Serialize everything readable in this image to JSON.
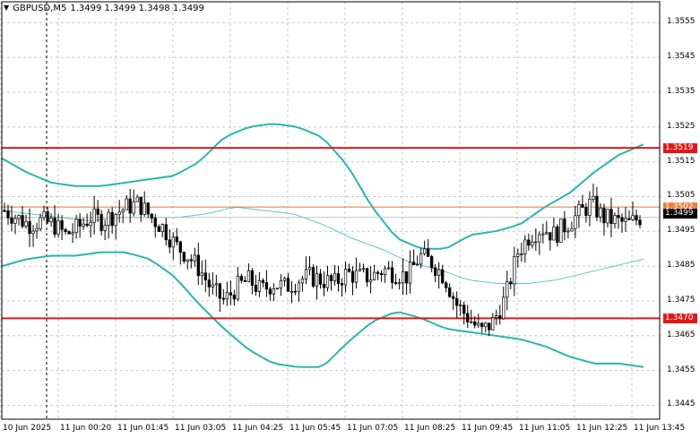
{
  "header": {
    "symbol": "GBPUSD,M5",
    "ohlc": "1.3499 1.3499 1.3498 1.3499"
  },
  "colors": {
    "grid": "#c8c8c8",
    "candle": "#000000",
    "band": "#2ab5b0",
    "ma": "#5ec7c3",
    "level_line": "#e01818",
    "ask_line": "#e07a3a",
    "bid_line": "#c0c0c0",
    "bid_tag_bg": "#000000",
    "level_tag_bg": "#e01818",
    "ask_tag_bg": "#e8823e"
  },
  "chart_data": {
    "type": "candlestick",
    "y_range": [
      1.3441,
      1.3561
    ],
    "price_ticks": [
      "1.3555",
      "1.3545",
      "1.3535",
      "1.3525",
      "1.3515",
      "1.3505",
      "1.3495",
      "1.3485",
      "1.3475",
      "1.3465",
      "1.3455",
      "1.3445"
    ],
    "time_labels": [
      "10 Jun 2025",
      "11 Jun 00:20",
      "11 Jun 01:45",
      "11 Jun 03:05",
      "11 Jun 04:25",
      "11 Jun 05:45",
      "11 Jun 07:05",
      "11 Jun 08:25",
      "11 Jun 09:45",
      "11 Jun 11:05",
      "11 Jun 12:25",
      "11 Jun 13:45"
    ],
    "levels": [
      {
        "price": 1.3519,
        "label": "1.3519"
      },
      {
        "price": 1.347,
        "label": "1.3470"
      }
    ],
    "ask": {
      "price": 1.3502,
      "label": "1.3502"
    },
    "bid": {
      "price": 1.3499,
      "label": "1.3499"
    },
    "close_path": [
      1.3501,
      1.3499,
      1.3497,
      1.3498,
      1.3497,
      1.3494,
      1.3496,
      1.3499,
      1.3498,
      1.35,
      1.3502,
      1.3503,
      1.3499,
      1.3496,
      1.3491,
      1.3488,
      1.3484,
      1.3478,
      1.3475,
      1.3479,
      1.3481,
      1.3478,
      1.348,
      1.3479,
      1.3481,
      1.3482,
      1.3481,
      1.348,
      1.3483,
      1.3482,
      1.3482,
      1.3484,
      1.3483,
      1.3482,
      1.3488,
      1.3486,
      1.3482,
      1.3474,
      1.347,
      1.3466,
      1.3469,
      1.3476,
      1.3489,
      1.3494,
      1.3496,
      1.3494,
      1.3497,
      1.35,
      1.3503,
      1.3499,
      1.3498,
      1.3497,
      1.3499
    ],
    "upper_band_path": [
      1.3516,
      1.3512,
      1.3509,
      1.3508,
      1.3508,
      1.3509,
      1.351,
      1.3511,
      1.3515,
      1.3522,
      1.3525,
      1.3526,
      1.3525,
      1.3522,
      1.3514,
      1.3502,
      1.3493,
      1.349,
      1.349,
      1.3494,
      1.3495,
      1.3497,
      1.3502,
      1.3506,
      1.3512,
      1.3517,
      1.352
    ],
    "lower_band_path": [
      1.3485,
      1.3487,
      1.3488,
      1.3488,
      1.3489,
      1.3489,
      1.3487,
      1.3482,
      1.3474,
      1.3467,
      1.3461,
      1.3457,
      1.3456,
      1.3456,
      1.3463,
      1.3469,
      1.3472,
      1.347,
      1.3467,
      1.3466,
      1.3465,
      1.3464,
      1.3462,
      1.3459,
      1.3457,
      1.3457,
      1.3456
    ],
    "ma_path": [
      1.3501,
      1.35,
      1.3499,
      1.3498,
      1.3499,
      1.3499,
      1.3499,
      1.35,
      1.3502,
      1.3501,
      1.35,
      1.3497,
      1.3493,
      1.349,
      1.3486,
      1.3484,
      1.3481,
      1.348,
      1.348,
      1.3481,
      1.3483,
      1.3485,
      1.3487
    ]
  }
}
